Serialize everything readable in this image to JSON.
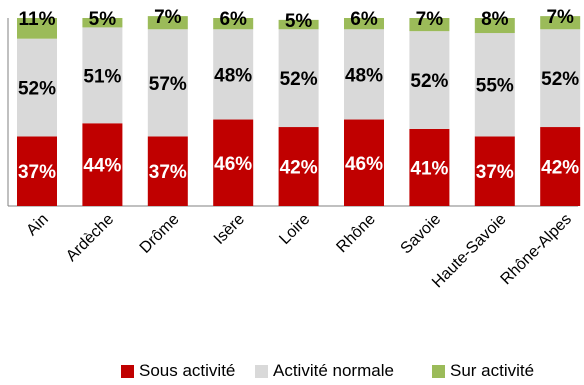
{
  "chart_data": {
    "type": "bar",
    "stacked": true,
    "normalized": true,
    "categories": [
      "Ain",
      "Ardèche",
      "Drôme",
      "Isère",
      "Loire",
      "Rhône",
      "Savoie",
      "Haute-Savoie",
      "Rhône-Alpes"
    ],
    "series": [
      {
        "name": "Sous activité",
        "color": "#C00000",
        "label_color": "#ffffff",
        "values": [
          37,
          44,
          37,
          46,
          42,
          46,
          41,
          37,
          42
        ]
      },
      {
        "name": "Activité normale",
        "color": "#D9D9D9",
        "label_color": "#000000",
        "values": [
          52,
          51,
          57,
          48,
          52,
          48,
          52,
          55,
          52
        ]
      },
      {
        "name": "Sur activité",
        "color": "#9BBB59",
        "label_color": "#000000",
        "values": [
          11,
          5,
          7,
          6,
          5,
          6,
          7,
          8,
          7
        ]
      }
    ],
    "ylim": [
      0,
      100
    ],
    "value_suffix": "%",
    "grid": false,
    "legend_position": "bottom"
  }
}
